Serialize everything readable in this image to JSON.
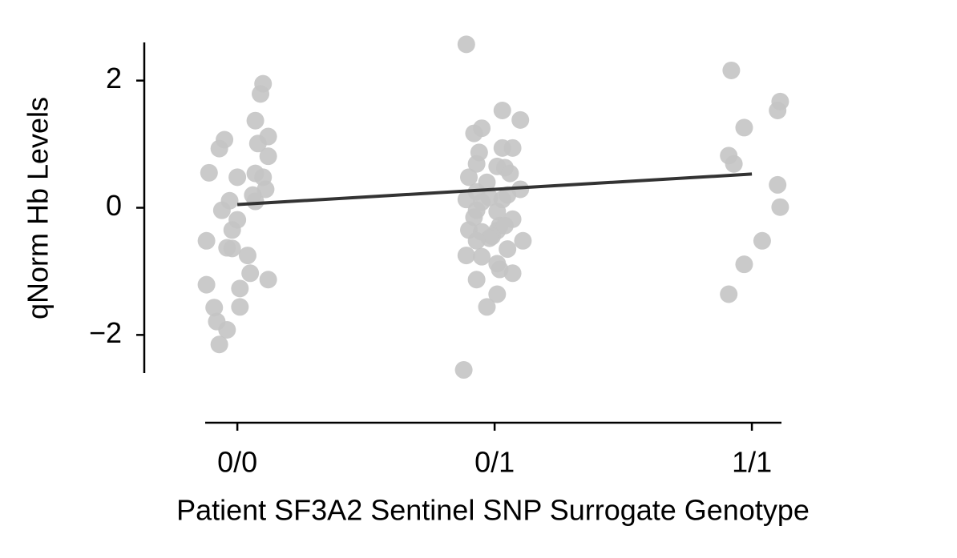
{
  "chart_data": {
    "type": "scatter",
    "xlabel": "Patient SF3A2 Sentinel SNP Surrogate Genotype",
    "ylabel": "qNorm Hb Levels",
    "xlim": [
      -0.125,
      2.115
    ],
    "ylim": [
      -2.6,
      2.6
    ],
    "xticks": [
      {
        "value": 0,
        "label": "0/0"
      },
      {
        "value": 1,
        "label": "0/1"
      },
      {
        "value": 2,
        "label": "1/1"
      }
    ],
    "yticks": [
      {
        "value": -2,
        "label": "−2"
      },
      0,
      2
    ],
    "series": [
      {
        "color": "#c4c4c4",
        "x": [
          0.1,
          0.09,
          0.07,
          0.12,
          -0.05,
          -0.07,
          0.08,
          0.12,
          -0.11,
          0.0,
          0.07,
          0.1,
          0.11,
          0.06,
          -0.03,
          0.07,
          -0.06,
          0.0,
          -0.02,
          -0.12,
          -0.04,
          -0.02,
          0.04,
          0.05,
          0.12,
          0.01,
          -0.12,
          -0.09,
          0.01,
          -0.08,
          -0.04,
          -0.07,
          0.89,
          1.03,
          1.1,
          0.95,
          0.92,
          0.94,
          1.03,
          1.07,
          0.93,
          1.01,
          1.04,
          1.06,
          0.9,
          0.97,
          1.1,
          0.93,
          1.05,
          0.89,
          0.95,
          0.98,
          1.03,
          0.93,
          1.01,
          0.92,
          1.07,
          1.02,
          0.9,
          0.95,
          1.01,
          1.04,
          0.99,
          0.98,
          0.93,
          1.11,
          1.05,
          0.89,
          0.95,
          1.01,
          1.02,
          1.07,
          0.93,
          1.01,
          0.97,
          0.88,
          1.92,
          2.11,
          2.1,
          1.97,
          1.91,
          1.93,
          2.1,
          2.11,
          2.04,
          1.97,
          1.91
        ],
        "y": [
          1.95,
          1.79,
          1.37,
          1.12,
          1.07,
          0.93,
          1.01,
          0.81,
          0.55,
          0.48,
          0.54,
          0.48,
          0.29,
          0.2,
          0.11,
          0.1,
          -0.04,
          -0.19,
          -0.35,
          -0.52,
          -0.63,
          -0.64,
          -0.75,
          -1.03,
          -1.13,
          -1.27,
          -1.21,
          -1.57,
          -1.56,
          -1.79,
          -1.92,
          -2.15,
          2.57,
          1.53,
          1.38,
          1.25,
          1.17,
          0.87,
          0.94,
          0.94,
          0.69,
          0.65,
          0.63,
          0.54,
          0.48,
          0.4,
          0.29,
          0.25,
          0.2,
          0.13,
          0.09,
          0.16,
          0.13,
          -0.04,
          -0.06,
          -0.15,
          -0.18,
          -0.28,
          -0.35,
          -0.38,
          -0.36,
          -0.28,
          -0.45,
          -0.48,
          -0.52,
          -0.52,
          -0.65,
          -0.75,
          -0.77,
          -0.88,
          -0.97,
          -1.03,
          -1.13,
          -1.36,
          -1.56,
          -2.55,
          2.16,
          1.67,
          1.53,
          1.26,
          0.82,
          0.69,
          0.36,
          0.01,
          -0.52,
          -0.89,
          -1.36
        ]
      }
    ],
    "trend_line": {
      "x": [
        0,
        2
      ],
      "y": [
        0.05,
        0.53
      ],
      "color": "#333333"
    }
  }
}
